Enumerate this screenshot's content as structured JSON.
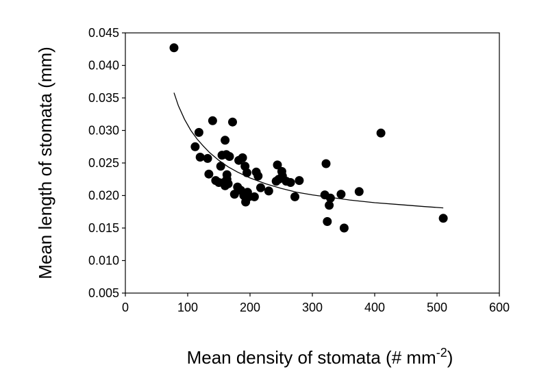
{
  "chart_data": {
    "type": "scatter",
    "title": "",
    "xlabel": "Mean density of stomata (# mm",
    "xlabel_superscript": "-2",
    "xlabel_suffix": ")",
    "ylabel": "Mean length of stomata (mm)",
    "xlim": [
      0,
      600
    ],
    "ylim": [
      0.005,
      0.045
    ],
    "x_ticks": [
      "0",
      "100",
      "200",
      "300",
      "400",
      "500",
      "600"
    ],
    "y_ticks": [
      "0.005",
      "0.010",
      "0.015",
      "0.020",
      "0.025",
      "0.030",
      "0.035",
      "0.040",
      "0.045"
    ],
    "grid": false,
    "legend": "none",
    "colors": {
      "points": "#000000",
      "trend": "#000000",
      "frame": "#000000"
    },
    "series": [
      {
        "type": "scatter",
        "x": [
          78,
          112,
          118,
          120,
          132,
          134,
          140,
          145,
          150,
          153,
          155,
          158,
          160,
          160,
          162,
          163,
          163,
          165,
          167,
          172,
          175,
          180,
          182,
          185,
          188,
          190,
          192,
          193,
          195,
          196,
          198,
          207,
          210,
          213,
          217,
          230,
          242,
          244,
          246,
          251,
          252,
          258,
          265,
          272,
          279,
          320,
          322,
          324,
          327,
          329,
          351,
          346,
          375,
          410,
          510
        ],
        "y": [
          0.0427,
          0.0275,
          0.0297,
          0.0259,
          0.0257,
          0.0233,
          0.0315,
          0.0223,
          0.022,
          0.0245,
          0.0262,
          0.022,
          0.0285,
          0.0215,
          0.0263,
          0.0232,
          0.0225,
          0.0218,
          0.026,
          0.0313,
          0.0202,
          0.0213,
          0.0254,
          0.0208,
          0.0258,
          0.02,
          0.0245,
          0.019,
          0.0235,
          0.0205,
          0.0198,
          0.0198,
          0.0236,
          0.023,
          0.0212,
          0.0207,
          0.0222,
          0.0247,
          0.0225,
          0.0237,
          0.023,
          0.0222,
          0.022,
          0.0198,
          0.0223,
          0.0201,
          0.0249,
          0.016,
          0.0185,
          0.0196,
          0.015,
          0.0202,
          0.0206,
          0.0296,
          0.0165
        ]
      },
      {
        "type": "line",
        "x": [
          78,
          85,
          95,
          105,
          115,
          125,
          135,
          150,
          165,
          180,
          200,
          225,
          250,
          275,
          300,
          330,
          360,
          400,
          440,
          480,
          510
        ],
        "y": [
          0.0358,
          0.0338,
          0.0317,
          0.03,
          0.0287,
          0.0276,
          0.0266,
          0.0254,
          0.0244,
          0.0236,
          0.0227,
          0.0218,
          0.0211,
          0.0205,
          0.0201,
          0.0197,
          0.0193,
          0.0189,
          0.0186,
          0.0183,
          0.0181
        ]
      }
    ]
  }
}
